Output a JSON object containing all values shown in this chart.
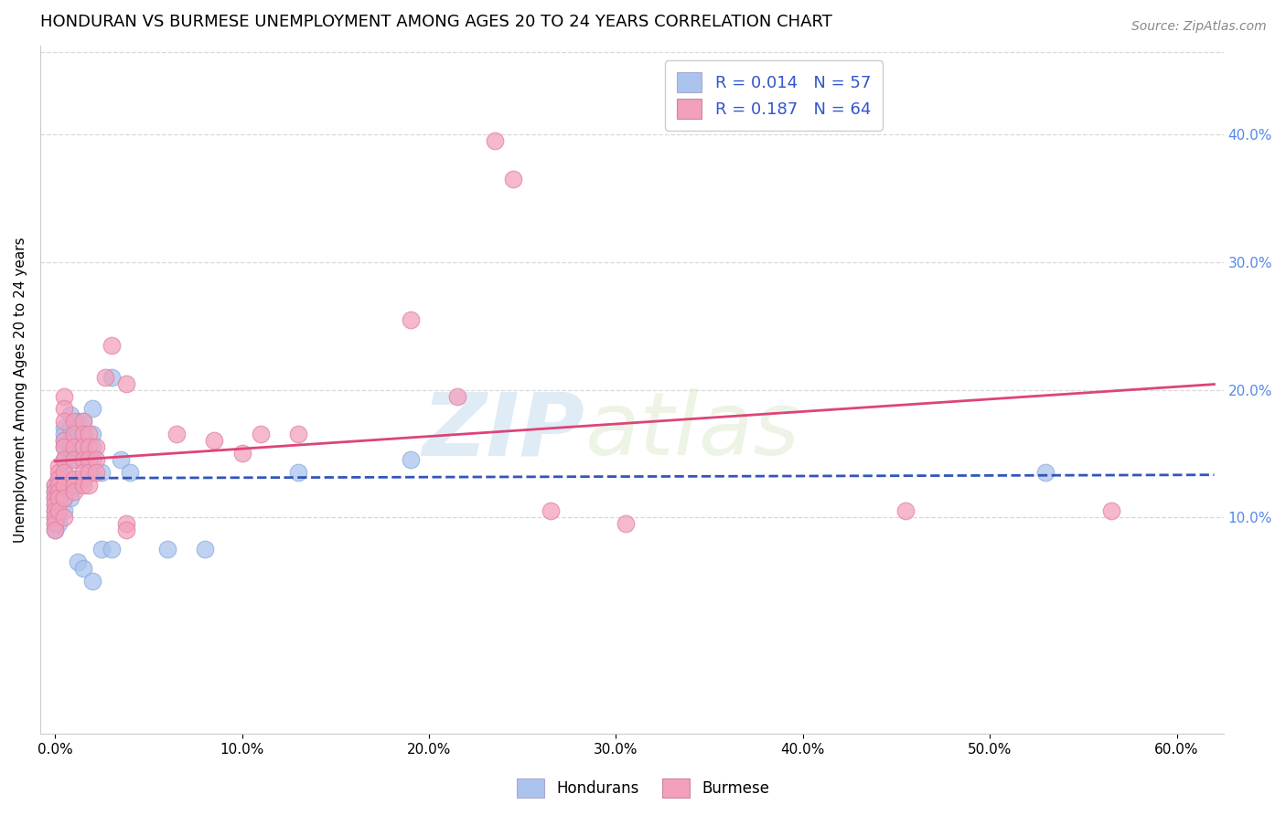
{
  "title": "HONDURAN VS BURMESE UNEMPLOYMENT AMONG AGES 20 TO 24 YEARS CORRELATION CHART",
  "source": "Source: ZipAtlas.com",
  "ylabel": "Unemployment Among Ages 20 to 24 years",
  "xlabel_ticks": [
    "0.0%",
    "10.0%",
    "20.0%",
    "30.0%",
    "40.0%",
    "50.0%",
    "60.0%"
  ],
  "xlabel_vals": [
    0.0,
    0.1,
    0.2,
    0.3,
    0.4,
    0.5,
    0.6
  ],
  "ylabel_right_ticks": [
    "10.0%",
    "20.0%",
    "30.0%",
    "40.0%"
  ],
  "ylabel_right_vals": [
    0.1,
    0.2,
    0.3,
    0.4
  ],
  "xlim": [
    -0.008,
    0.625
  ],
  "ylim": [
    -0.07,
    0.47
  ],
  "honduran_color": "#aac4ee",
  "burmese_color": "#f2a0bc",
  "honduran_edge_color": "#88aadd",
  "burmese_edge_color": "#e080a0",
  "honduran_line_color": "#3355bb",
  "burmese_line_color": "#dd4477",
  "legend_blue_color": "#aac4ee",
  "legend_pink_color": "#f2a0bc",
  "R_honduran": "0.014",
  "N_honduran": 57,
  "R_burmese": "0.187",
  "N_burmese": 64,
  "watermark_zip": "ZIP",
  "watermark_atlas": "atlas",
  "honduran_scatter": [
    [
      0.0,
      0.125
    ],
    [
      0.0,
      0.12
    ],
    [
      0.0,
      0.115
    ],
    [
      0.0,
      0.11
    ],
    [
      0.0,
      0.105
    ],
    [
      0.0,
      0.1
    ],
    [
      0.0,
      0.095
    ],
    [
      0.0,
      0.09
    ],
    [
      0.002,
      0.13
    ],
    [
      0.002,
      0.125
    ],
    [
      0.002,
      0.12
    ],
    [
      0.002,
      0.105
    ],
    [
      0.002,
      0.095
    ],
    [
      0.005,
      0.17
    ],
    [
      0.005,
      0.165
    ],
    [
      0.005,
      0.16
    ],
    [
      0.005,
      0.155
    ],
    [
      0.005,
      0.145
    ],
    [
      0.005,
      0.135
    ],
    [
      0.005,
      0.125
    ],
    [
      0.005,
      0.115
    ],
    [
      0.005,
      0.105
    ],
    [
      0.008,
      0.18
    ],
    [
      0.008,
      0.17
    ],
    [
      0.008,
      0.16
    ],
    [
      0.008,
      0.155
    ],
    [
      0.008,
      0.145
    ],
    [
      0.008,
      0.12
    ],
    [
      0.008,
      0.115
    ],
    [
      0.012,
      0.175
    ],
    [
      0.012,
      0.165
    ],
    [
      0.012,
      0.155
    ],
    [
      0.012,
      0.145
    ],
    [
      0.012,
      0.13
    ],
    [
      0.012,
      0.065
    ],
    [
      0.015,
      0.175
    ],
    [
      0.015,
      0.165
    ],
    [
      0.015,
      0.155
    ],
    [
      0.015,
      0.13
    ],
    [
      0.015,
      0.06
    ],
    [
      0.02,
      0.185
    ],
    [
      0.02,
      0.165
    ],
    [
      0.02,
      0.155
    ],
    [
      0.02,
      0.145
    ],
    [
      0.02,
      0.135
    ],
    [
      0.02,
      0.05
    ],
    [
      0.025,
      0.135
    ],
    [
      0.025,
      0.075
    ],
    [
      0.03,
      0.21
    ],
    [
      0.03,
      0.075
    ],
    [
      0.035,
      0.145
    ],
    [
      0.04,
      0.135
    ],
    [
      0.06,
      0.075
    ],
    [
      0.08,
      0.075
    ],
    [
      0.13,
      0.135
    ],
    [
      0.19,
      0.145
    ],
    [
      0.53,
      0.135
    ]
  ],
  "burmese_scatter": [
    [
      0.0,
      0.125
    ],
    [
      0.0,
      0.12
    ],
    [
      0.0,
      0.115
    ],
    [
      0.0,
      0.11
    ],
    [
      0.0,
      0.105
    ],
    [
      0.0,
      0.1
    ],
    [
      0.0,
      0.095
    ],
    [
      0.0,
      0.09
    ],
    [
      0.002,
      0.14
    ],
    [
      0.002,
      0.135
    ],
    [
      0.002,
      0.13
    ],
    [
      0.002,
      0.125
    ],
    [
      0.002,
      0.12
    ],
    [
      0.002,
      0.115
    ],
    [
      0.002,
      0.105
    ],
    [
      0.005,
      0.195
    ],
    [
      0.005,
      0.185
    ],
    [
      0.005,
      0.175
    ],
    [
      0.005,
      0.16
    ],
    [
      0.005,
      0.155
    ],
    [
      0.005,
      0.145
    ],
    [
      0.005,
      0.135
    ],
    [
      0.005,
      0.125
    ],
    [
      0.005,
      0.115
    ],
    [
      0.005,
      0.1
    ],
    [
      0.01,
      0.175
    ],
    [
      0.01,
      0.165
    ],
    [
      0.01,
      0.155
    ],
    [
      0.01,
      0.145
    ],
    [
      0.01,
      0.13
    ],
    [
      0.01,
      0.125
    ],
    [
      0.01,
      0.12
    ],
    [
      0.015,
      0.175
    ],
    [
      0.015,
      0.165
    ],
    [
      0.015,
      0.155
    ],
    [
      0.015,
      0.145
    ],
    [
      0.015,
      0.135
    ],
    [
      0.015,
      0.125
    ],
    [
      0.018,
      0.165
    ],
    [
      0.018,
      0.155
    ],
    [
      0.018,
      0.145
    ],
    [
      0.018,
      0.135
    ],
    [
      0.018,
      0.125
    ],
    [
      0.022,
      0.155
    ],
    [
      0.022,
      0.145
    ],
    [
      0.022,
      0.135
    ],
    [
      0.027,
      0.21
    ],
    [
      0.03,
      0.235
    ],
    [
      0.038,
      0.205
    ],
    [
      0.038,
      0.095
    ],
    [
      0.038,
      0.09
    ],
    [
      0.065,
      0.165
    ],
    [
      0.085,
      0.16
    ],
    [
      0.1,
      0.15
    ],
    [
      0.11,
      0.165
    ],
    [
      0.13,
      0.165
    ],
    [
      0.19,
      0.255
    ],
    [
      0.215,
      0.195
    ],
    [
      0.235,
      0.395
    ],
    [
      0.245,
      0.365
    ],
    [
      0.265,
      0.105
    ],
    [
      0.305,
      0.095
    ],
    [
      0.455,
      0.105
    ],
    [
      0.565,
      0.105
    ]
  ],
  "background_color": "#ffffff",
  "grid_color": "#d8d8d8",
  "title_fontsize": 13,
  "axis_label_fontsize": 11,
  "tick_fontsize": 11,
  "legend_fontsize": 13
}
